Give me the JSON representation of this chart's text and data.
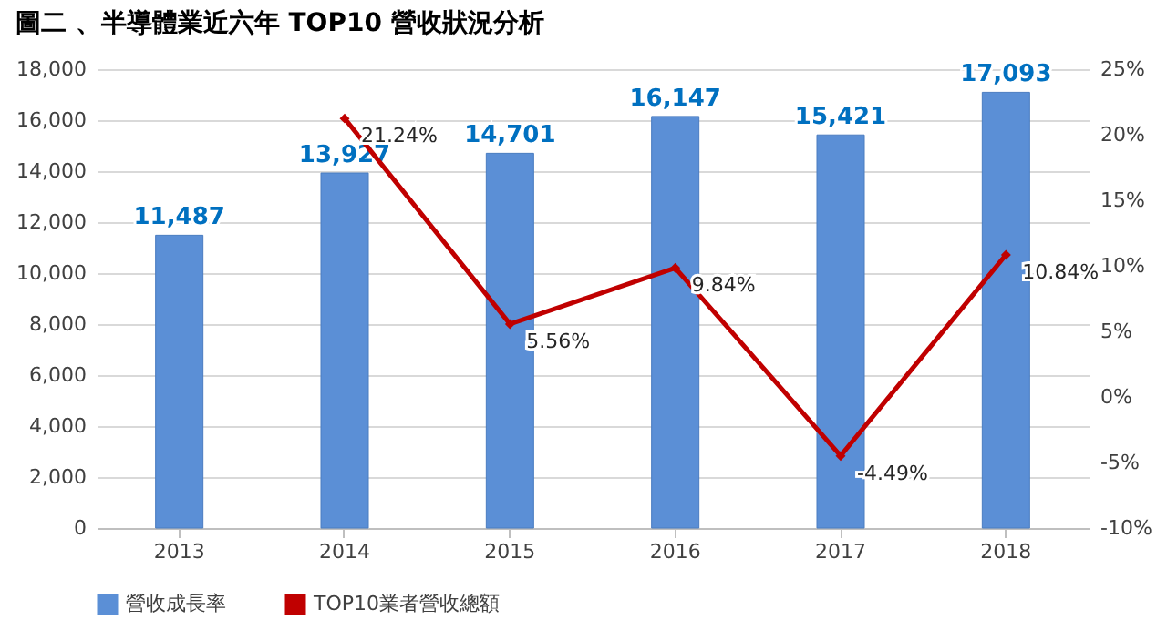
{
  "chart_data": {
    "type": "bar",
    "title": "圖二 、半導體業近六年 TOP10 營收狀況分析",
    "categories": [
      "2013",
      "2014",
      "2015",
      "2016",
      "2017",
      "2018"
    ],
    "series": [
      {
        "name": "營收成長率",
        "color": "#5b8fd6",
        "values": [
          11487,
          13927,
          14701,
          16147,
          15421,
          17093
        ],
        "value_labels": [
          "11,487",
          "13,927",
          "14,701",
          "16,147",
          "15,421",
          "17,093"
        ]
      },
      {
        "name": "TOP10業者營收總額",
        "type": "line",
        "axis": "y2",
        "color": "#c00000",
        "values": [
          null,
          21.24,
          5.56,
          9.84,
          -4.49,
          10.84
        ],
        "value_labels": [
          null,
          "21.24%",
          "5.56%",
          "9.84%",
          "-4.49%",
          "10.84%"
        ]
      }
    ],
    "ylim": [
      0,
      18000
    ],
    "yticks": [
      0,
      {
        "value": 2000,
        "label": "2,000"
      },
      {
        "value": 4000,
        "label": "4,000"
      },
      {
        "value": 6000,
        "label": "6,000"
      },
      {
        "value": 8000,
        "label": "8,000"
      },
      {
        "value": 10000,
        "label": "10,000"
      },
      {
        "value": 12000,
        "label": "12,000"
      },
      {
        "value": 14000,
        "label": "14,000"
      },
      {
        "value": 16000,
        "label": "16,000"
      },
      {
        "value": 18000,
        "label": "18,000"
      }
    ],
    "y2lim": [
      -10,
      25
    ],
    "y2ticks": [
      {
        "value": -10,
        "label": "-10%"
      },
      {
        "value": -5,
        "label": "-5%"
      },
      {
        "value": 0,
        "label": "0%"
      },
      {
        "value": 5,
        "label": "5%"
      },
      {
        "value": 10,
        "label": "10%"
      },
      {
        "value": 15,
        "label": "15%"
      },
      {
        "value": 20,
        "label": "20%"
      },
      {
        "value": 25,
        "label": "25%"
      }
    ],
    "grid": "y",
    "legend": "bottom",
    "marker": "diamond",
    "line_style": "solid"
  }
}
